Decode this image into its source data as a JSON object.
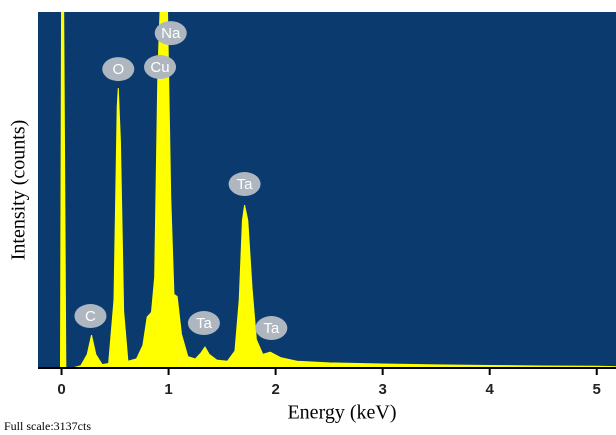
{
  "chart_data": {
    "type": "area",
    "xlabel": "Energy (keV)",
    "ylabel": "Intensity (counts)",
    "footnote": "Full scale:3137cts",
    "xlim": [
      -0.22,
      5.18
    ],
    "ylim": [
      0,
      3137
    ],
    "xticks": [
      0,
      1,
      2,
      3,
      4,
      5
    ],
    "background": "#0b3a6e",
    "color": "#ffff00",
    "x": [
      -0.2,
      -0.05,
      -0.01,
      0.0,
      0.02,
      0.04,
      0.1,
      0.18,
      0.24,
      0.28,
      0.32,
      0.38,
      0.44,
      0.49,
      0.52,
      0.53,
      0.55,
      0.58,
      0.62,
      0.7,
      0.76,
      0.8,
      0.84,
      0.87,
      0.9,
      0.92,
      0.99,
      1.02,
      1.05,
      1.08,
      1.12,
      1.18,
      1.25,
      1.3,
      1.34,
      1.38,
      1.45,
      1.55,
      1.62,
      1.66,
      1.69,
      1.71,
      1.74,
      1.78,
      1.82,
      1.88,
      1.95,
      2.05,
      2.2,
      2.5,
      3.0,
      3.5,
      4.0,
      4.5,
      5.0,
      5.18
    ],
    "values": [
      0,
      0,
      0,
      3137,
      3137,
      0,
      0,
      20,
      120,
      290,
      120,
      30,
      40,
      600,
      2300,
      2467,
      2000,
      500,
      60,
      80,
      200,
      450,
      490,
      800,
      2600,
      3137,
      3137,
      1500,
      650,
      630,
      300,
      100,
      80,
      130,
      185,
      120,
      70,
      60,
      150,
      600,
      1300,
      1436,
      1300,
      700,
      250,
      120,
      140,
      90,
      60,
      45,
      35,
      28,
      22,
      18,
      15,
      12
    ],
    "annotations": [
      {
        "label": "C",
        "x": 0.27,
        "y": 458
      },
      {
        "label": "O",
        "x": 0.53,
        "y": 2634
      },
      {
        "label": "Cu",
        "x": 0.92,
        "y": 2652
      },
      {
        "label": "Na",
        "x": 1.02,
        "y": 2951
      },
      {
        "label": "Ta",
        "x": 1.71,
        "y": 1621
      },
      {
        "label": "Ta",
        "x": 1.33,
        "y": 396
      },
      {
        "label": "Ta",
        "x": 1.96,
        "y": 352
      }
    ]
  }
}
